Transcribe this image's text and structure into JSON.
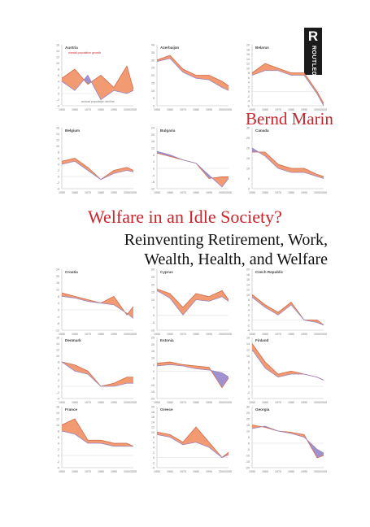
{
  "publisher": {
    "name": "ROUTLEDGE",
    "letter": "R"
  },
  "author": "Bernd Marin",
  "title": "Welfare in an Idle Society?",
  "subtitle_line1": "Reinventing Retirement, Work,",
  "subtitle_line2": "Wealth, Health, and Welfare",
  "colors": {
    "accent": "#c8262c",
    "orange": "#f08a5a",
    "purple": "#8f7fc8",
    "line": "#d06a4a"
  },
  "chart_data": [
    {
      "type": "area",
      "title": "Austria",
      "x": [
        1950,
        1960,
        1970,
        1980,
        1990,
        2000,
        2005
      ],
      "yticks": [
        16,
        14,
        12,
        10,
        8,
        6,
        4,
        2,
        0,
        -2,
        -4
      ],
      "series": [
        {
          "values": [
            5,
            8,
            3,
            6,
            2,
            9,
            1.5
          ]
        },
        {
          "values": [
            4,
            1,
            6,
            -2,
            1,
            0,
            1
          ]
        }
      ],
      "annotations": [
        "overall population growth",
        "annual population decline"
      ]
    },
    {
      "type": "area",
      "title": "Azerbaijan",
      "x": [
        1950,
        1960,
        1970,
        1980,
        1990,
        2000,
        2005
      ],
      "yticks": [
        40,
        35,
        30,
        25,
        20,
        15,
        10,
        5,
        0
      ],
      "series": [
        {
          "values": [
            30,
            33,
            24,
            20,
            20,
            16,
            13
          ]
        },
        {
          "values": [
            29,
            31,
            22,
            18,
            17,
            12,
            10
          ]
        }
      ]
    },
    {
      "type": "area",
      "title": "Belarus",
      "x": [
        1950,
        1960,
        1970,
        1980,
        1990,
        2000,
        2005
      ],
      "yticks": [
        20,
        18,
        16,
        14,
        12,
        10,
        8,
        6,
        4,
        2,
        0,
        -2,
        -4,
        -6
      ],
      "series": [
        {
          "values": [
            8,
            12,
            10,
            8,
            8,
            0,
            -5
          ]
        },
        {
          "values": [
            7,
            9,
            9,
            7,
            7,
            -1,
            -6
          ]
        }
      ]
    },
    {
      "type": "area",
      "title": "Belgium",
      "x": [
        1950,
        1960,
        1970,
        1980,
        1990,
        2000,
        2005
      ],
      "yticks": [
        16,
        14,
        12,
        10,
        8,
        6,
        4,
        2,
        0,
        -2,
        -4
      ],
      "series": [
        {
          "values": [
            5,
            6,
            3,
            -1,
            2,
            3,
            2
          ]
        },
        {
          "values": [
            4,
            5,
            2,
            -1,
            1,
            2,
            1.5
          ]
        }
      ]
    },
    {
      "type": "area",
      "title": "Bulgaria",
      "x": [
        1950,
        1960,
        1970,
        1980,
        1990,
        2000,
        2005
      ],
      "yticks": [
        24,
        20,
        16,
        12,
        8,
        4,
        0,
        -4,
        -8,
        -12
      ],
      "series": [
        {
          "values": [
            9,
            7,
            5,
            3,
            -6,
            -5,
            -5
          ]
        },
        {
          "values": [
            10,
            8,
            5,
            3,
            -4,
            -11,
            -6
          ]
        }
      ]
    },
    {
      "type": "area",
      "title": "Canada",
      "x": [
        1950,
        1960,
        1970,
        1980,
        1990,
        2000,
        2005
      ],
      "yticks": [
        30,
        25,
        20,
        15,
        10,
        5,
        0
      ],
      "series": [
        {
          "values": [
            18,
            18,
            12,
            10,
            10,
            7,
            6
          ]
        },
        {
          "values": [
            20,
            16,
            10,
            8,
            8,
            6,
            5
          ]
        }
      ]
    },
    {
      "type": "area",
      "title": "Croatia",
      "x": [
        1950,
        1960,
        1970,
        1980,
        1990,
        2000,
        2005
      ],
      "yticks": [
        24,
        20,
        16,
        12,
        8,
        4,
        0,
        -4,
        -8,
        -12
      ],
      "series": [
        {
          "values": [
            10,
            8,
            6,
            4,
            8,
            -3,
            2
          ]
        },
        {
          "values": [
            8,
            7,
            5,
            4,
            3,
            -2,
            -5
          ]
        }
      ]
    },
    {
      "type": "area",
      "title": "Cyprus",
      "x": [
        1950,
        1960,
        1970,
        1980,
        1990,
        2000,
        2005
      ],
      "yticks": [
        30,
        25,
        20,
        15,
        10,
        5,
        0,
        -5,
        -10
      ],
      "series": [
        {
          "values": [
            17,
            14,
            5,
            14,
            12,
            16,
            10
          ]
        },
        {
          "values": [
            16,
            11,
            0,
            10,
            9,
            12,
            9
          ]
        }
      ]
    },
    {
      "type": "area",
      "title": "Czech Republic",
      "x": [
        1950,
        1960,
        1970,
        1980,
        1990,
        2000,
        2005
      ],
      "yticks": [
        20,
        18,
        16,
        14,
        12,
        10,
        8,
        6,
        4,
        2,
        0,
        -2,
        -4
      ],
      "series": [
        {
          "values": [
            10,
            6,
            3,
            7,
            0,
            0,
            -2
          ]
        },
        {
          "values": [
            9,
            5,
            2,
            6,
            0,
            -1,
            -2
          ]
        }
      ]
    },
    {
      "type": "area",
      "title": "Denmark",
      "x": [
        1950,
        1960,
        1970,
        1980,
        1990,
        2000,
        2005
      ],
      "yticks": [
        16,
        14,
        12,
        10,
        8,
        6,
        4,
        2,
        0,
        -2,
        -4
      ],
      "series": [
        {
          "values": [
            8,
            7,
            5,
            0,
            1,
            3,
            3
          ]
        },
        {
          "values": [
            8,
            5,
            4,
            0,
            0,
            1,
            1
          ]
        }
      ]
    },
    {
      "type": "area",
      "title": "Estonia",
      "x": [
        1950,
        1960,
        1970,
        1980,
        1990,
        2000,
        2005
      ],
      "yticks": [
        25,
        20,
        15,
        10,
        5,
        0,
        -5,
        -10,
        -15,
        -20
      ],
      "series": [
        {
          "values": [
            6,
            7,
            5,
            4,
            3,
            -12,
            -5
          ]
        },
        {
          "values": [
            4,
            5,
            4,
            2,
            1,
            -1,
            -4
          ]
        }
      ]
    },
    {
      "type": "area",
      "title": "Finland",
      "x": [
        1950,
        1960,
        1970,
        1980,
        1990,
        2000,
        2005
      ],
      "yticks": [
        16,
        14,
        12,
        10,
        8,
        6,
        4,
        2,
        0,
        -2,
        -4
      ],
      "series": [
        {
          "values": [
            14,
            8,
            4,
            5,
            4,
            3,
            2
          ]
        },
        {
          "values": [
            12,
            6,
            3,
            4,
            4,
            3,
            2
          ]
        }
      ]
    },
    {
      "type": "area",
      "title": "France",
      "x": [
        1950,
        1960,
        1970,
        1980,
        1990,
        2000,
        2005
      ],
      "yticks": [
        16,
        14,
        12,
        10,
        8,
        6,
        4,
        2,
        0,
        -2,
        -4
      ],
      "series": [
        {
          "values": [
            10,
            12,
            5,
            5,
            4,
            4,
            3
          ]
        },
        {
          "values": [
            8,
            7,
            4,
            4,
            3,
            3,
            3
          ]
        }
      ]
    },
    {
      "type": "area",
      "title": "Greece",
      "x": [
        1950,
        1960,
        1970,
        1980,
        1990,
        2000,
        2005
      ],
      "yticks": [
        20,
        18,
        16,
        14,
        12,
        10,
        8,
        6,
        4,
        2,
        0,
        -2,
        -4
      ],
      "series": [
        {
          "values": [
            10,
            9,
            6,
            12,
            6,
            0,
            2
          ]
        },
        {
          "values": [
            9,
            8,
            5,
            6,
            4,
            0,
            1
          ]
        }
      ]
    },
    {
      "type": "area",
      "title": "Georgia",
      "x": [
        1950,
        1960,
        1970,
        1980,
        1990,
        2000,
        2005
      ],
      "yticks": [
        30,
        25,
        20,
        15,
        10,
        5,
        0,
        -5,
        -10,
        -15,
        -20
      ],
      "series": [
        {
          "values": [
            15,
            13,
            10,
            9,
            7,
            -12,
            -10
          ]
        },
        {
          "values": [
            12,
            14,
            10,
            8,
            5,
            -5,
            -8
          ]
        }
      ]
    }
  ]
}
